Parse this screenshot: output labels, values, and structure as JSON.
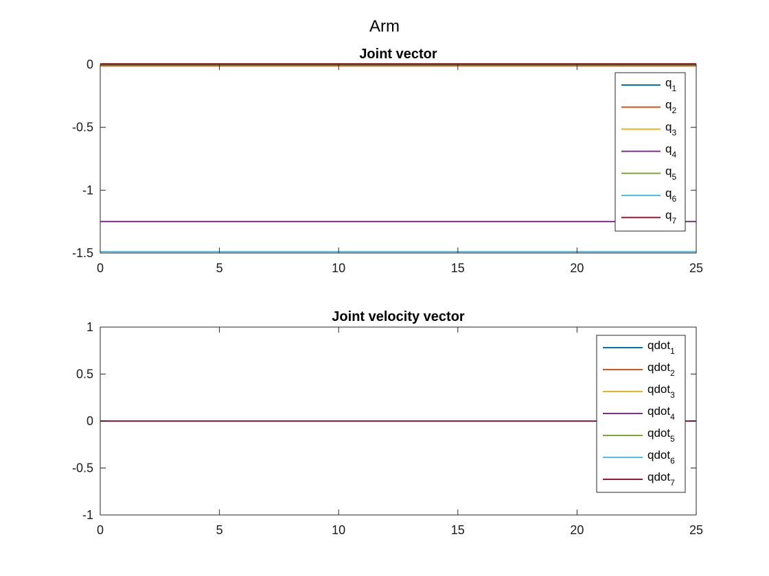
{
  "figure": {
    "title": "Arm"
  },
  "chart_data": [
    {
      "type": "line",
      "title": "Joint vector",
      "xlabel": "",
      "ylabel": "",
      "xlim": [
        0,
        25
      ],
      "ylim": [
        -1.5,
        0
      ],
      "xticks": [
        0,
        5,
        10,
        15,
        20,
        25
      ],
      "yticks": [
        0,
        -0.5,
        -1,
        -1.5
      ],
      "xtick_labels": [
        "0",
        "5",
        "10",
        "15",
        "20",
        "25"
      ],
      "ytick_labels": [
        "0",
        "-0.5",
        "-1",
        "-1.5"
      ],
      "grid": false,
      "legend_position": "top-right",
      "x": [
        0,
        25
      ],
      "series": [
        {
          "name": "q",
          "sub": "1",
          "color": "#0072BD",
          "values": [
            0,
            0
          ]
        },
        {
          "name": "q",
          "sub": "2",
          "color": "#D95319",
          "values": [
            -0.01,
            -0.01
          ]
        },
        {
          "name": "q",
          "sub": "3",
          "color": "#EDB120",
          "values": [
            0,
            0
          ]
        },
        {
          "name": "q",
          "sub": "4",
          "color": "#7E2F8E",
          "values": [
            -1.25,
            -1.25
          ]
        },
        {
          "name": "q",
          "sub": "5",
          "color": "#77AC30",
          "values": [
            0,
            0
          ]
        },
        {
          "name": "q",
          "sub": "6",
          "color": "#4DBEEE",
          "values": [
            -1.49,
            -1.49
          ]
        },
        {
          "name": "q",
          "sub": "7",
          "color": "#A2142F",
          "values": [
            0.005,
            0.005
          ]
        }
      ]
    },
    {
      "type": "line",
      "title": "Joint velocity vector",
      "xlabel": "",
      "ylabel": "",
      "xlim": [
        0,
        25
      ],
      "ylim": [
        -1,
        1
      ],
      "xticks": [
        0,
        5,
        10,
        15,
        20,
        25
      ],
      "yticks": [
        1,
        0.5,
        0,
        -0.5,
        -1
      ],
      "xtick_labels": [
        "0",
        "5",
        "10",
        "15",
        "20",
        "25"
      ],
      "ytick_labels": [
        "1",
        "0.5",
        "0",
        "-0.5",
        "-1"
      ],
      "grid": false,
      "legend_position": "top-right",
      "x": [
        0,
        25
      ],
      "series": [
        {
          "name": "qdot",
          "sub": "1",
          "color": "#0072BD",
          "values": [
            0,
            0
          ]
        },
        {
          "name": "qdot",
          "sub": "2",
          "color": "#D95319",
          "values": [
            0,
            0
          ]
        },
        {
          "name": "qdot",
          "sub": "3",
          "color": "#EDB120",
          "values": [
            0,
            0
          ]
        },
        {
          "name": "qdot",
          "sub": "4",
          "color": "#7E2F8E",
          "values": [
            0,
            0
          ]
        },
        {
          "name": "qdot",
          "sub": "5",
          "color": "#77AC30",
          "values": [
            0,
            0
          ]
        },
        {
          "name": "qdot",
          "sub": "6",
          "color": "#4DBEEE",
          "values": [
            0,
            0
          ]
        },
        {
          "name": "qdot",
          "sub": "7",
          "color": "#A2142F",
          "values": [
            0,
            0
          ]
        }
      ]
    }
  ]
}
